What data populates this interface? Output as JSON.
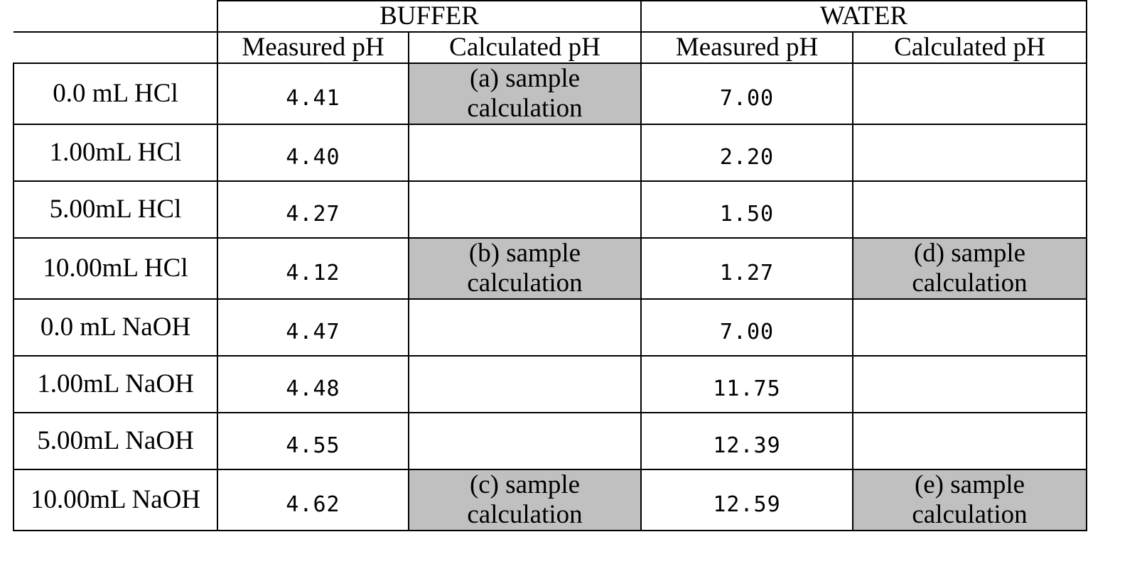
{
  "table": {
    "groups": [
      "BUFFER",
      "WATER"
    ],
    "subheaders": [
      "Measured pH",
      "Calculated pH",
      "Measured pH",
      "Calculated pH"
    ],
    "rows": [
      {
        "label": "0.0 mL HCl",
        "buffer_measured": "4.41",
        "buffer_calc": "(a) sample calculation",
        "water_measured": "7.00",
        "water_calc": ""
      },
      {
        "label": "1.00mL HCl",
        "buffer_measured": "4.40",
        "buffer_calc": "",
        "water_measured": "2.20",
        "water_calc": ""
      },
      {
        "label": "5.00mL HCl",
        "buffer_measured": "4.27",
        "buffer_calc": "",
        "water_measured": "1.50",
        "water_calc": ""
      },
      {
        "label": "10.00mL HCl",
        "buffer_measured": "4.12",
        "buffer_calc": "(b) sample calculation",
        "water_measured": "1.27",
        "water_calc": "(d) sample calculation"
      },
      {
        "label": "0.0 mL NaOH",
        "buffer_measured": "4.47",
        "buffer_calc": "",
        "water_measured": "7.00",
        "water_calc": ""
      },
      {
        "label": "1.00mL NaOH",
        "buffer_measured": "4.48",
        "buffer_calc": "",
        "water_measured": "11.75",
        "water_calc": ""
      },
      {
        "label": "5.00mL NaOH",
        "buffer_measured": "4.55",
        "buffer_calc": "",
        "water_measured": "12.39",
        "water_calc": ""
      },
      {
        "label": "10.00mL NaOH",
        "buffer_measured": "4.62",
        "buffer_calc": "(c) sample calculation",
        "water_measured": "12.59",
        "water_calc": "(e) sample calculation"
      }
    ],
    "shade_color": "#c0c0c0"
  }
}
